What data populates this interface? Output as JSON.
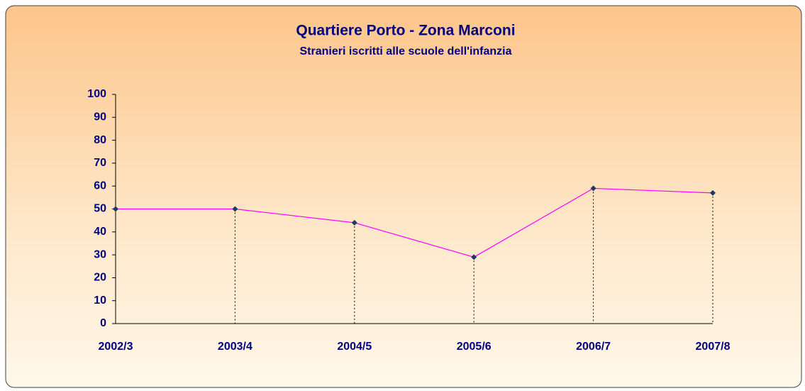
{
  "chart_data": {
    "type": "line",
    "title": "Quartiere Porto - Zona Marconi",
    "subtitle": "Stranieri iscritti alle scuole dell'infanzia",
    "categories": [
      "2002/3",
      "2003/4",
      "2004/5",
      "2005/6",
      "2006/7",
      "2007/8"
    ],
    "values": [
      50,
      50,
      44,
      29,
      59,
      57
    ],
    "color": "#ff00ff",
    "marker_color": "#1f3a5f",
    "drop_lines": true,
    "ylim": [
      0,
      100
    ],
    "yticks": [
      0,
      10,
      20,
      30,
      40,
      50,
      60,
      70,
      80,
      90,
      100
    ]
  }
}
